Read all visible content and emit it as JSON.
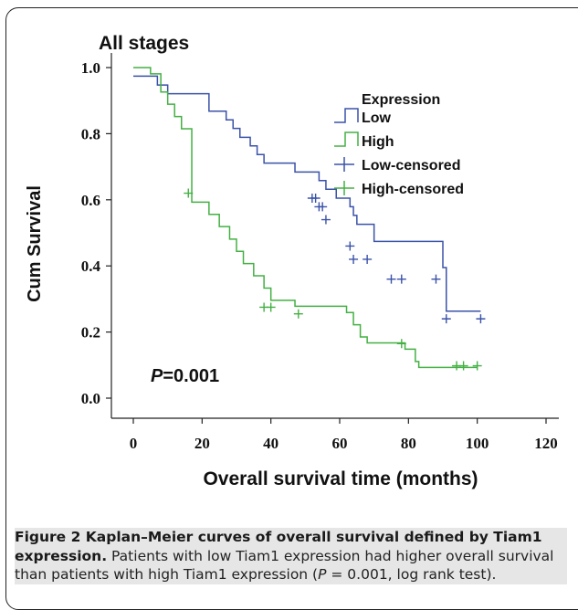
{
  "chart_data": {
    "type": "line",
    "title": "All stages",
    "xlabel": "Overall survival time (months)",
    "ylabel": "Cum Survival",
    "xlim": [
      0,
      120
    ],
    "ylim": [
      0,
      1.0
    ],
    "xticks": [
      "0",
      "20",
      "40",
      "60",
      "80",
      "100",
      "120"
    ],
    "yticks": [
      "0.0",
      "0.2",
      "0.4",
      "0.6",
      "0.8",
      "1.0"
    ],
    "legend_title": "Expression",
    "legend_position": "top-right",
    "annotation_italic": "P",
    "annotation_rest": "=0.001",
    "series": [
      {
        "name": "Low",
        "color": "#3a52a8",
        "step_x": [
          0,
          4,
          7,
          10,
          15,
          22,
          25,
          27,
          29,
          31,
          34,
          36,
          38,
          47,
          54,
          56,
          59,
          63,
          64,
          65,
          70,
          90,
          91,
          101
        ],
        "step_y": [
          0.974,
          0.974,
          0.947,
          0.921,
          0.921,
          0.868,
          0.868,
          0.842,
          0.816,
          0.789,
          0.763,
          0.737,
          0.711,
          0.684,
          0.658,
          0.632,
          0.605,
          0.579,
          0.553,
          0.526,
          0.474,
          0.395,
          0.263,
          0.263
        ]
      },
      {
        "name": "High",
        "color": "#43b043",
        "step_x": [
          0,
          3,
          5,
          8,
          10,
          12,
          14,
          17,
          22,
          25,
          28,
          30,
          32,
          35,
          38,
          40,
          47,
          62,
          64,
          66,
          68,
          70,
          73,
          75,
          77,
          79,
          82,
          83,
          100
        ],
        "step_y": [
          1.0,
          1.0,
          0.981,
          0.926,
          0.889,
          0.852,
          0.815,
          0.593,
          0.556,
          0.519,
          0.481,
          0.444,
          0.407,
          0.37,
          0.333,
          0.296,
          0.278,
          0.259,
          0.222,
          0.185,
          0.167,
          0.167,
          0.167,
          0.167,
          0.167,
          0.148,
          0.111,
          0.093,
          0.093
        ]
      },
      {
        "name": "Low-censored",
        "color": "#3a52a8",
        "x": [
          52,
          53,
          54,
          55,
          56,
          63,
          64,
          68,
          75,
          78,
          88,
          91,
          101
        ],
        "y": [
          0.605,
          0.605,
          0.579,
          0.579,
          0.54,
          0.46,
          0.42,
          0.42,
          0.36,
          0.36,
          0.36,
          0.24,
          0.24
        ]
      },
      {
        "name": "High-censored",
        "color": "#43b043",
        "x": [
          16,
          38,
          40,
          48,
          78,
          94,
          96,
          100
        ],
        "y": [
          0.62,
          0.275,
          0.275,
          0.255,
          0.165,
          0.098,
          0.098,
          0.098
        ]
      }
    ]
  },
  "caption": {
    "figure_label": "Figure 2 Kaplan–Meier curves of overall survival defined by Tiam1 expression.",
    "text_before": " Patients with low Tiam1 expression had higher overall survival than patients with high Tiam1 expression (",
    "p_italic": "P",
    "text_after": " = 0.001, log rank test)."
  }
}
